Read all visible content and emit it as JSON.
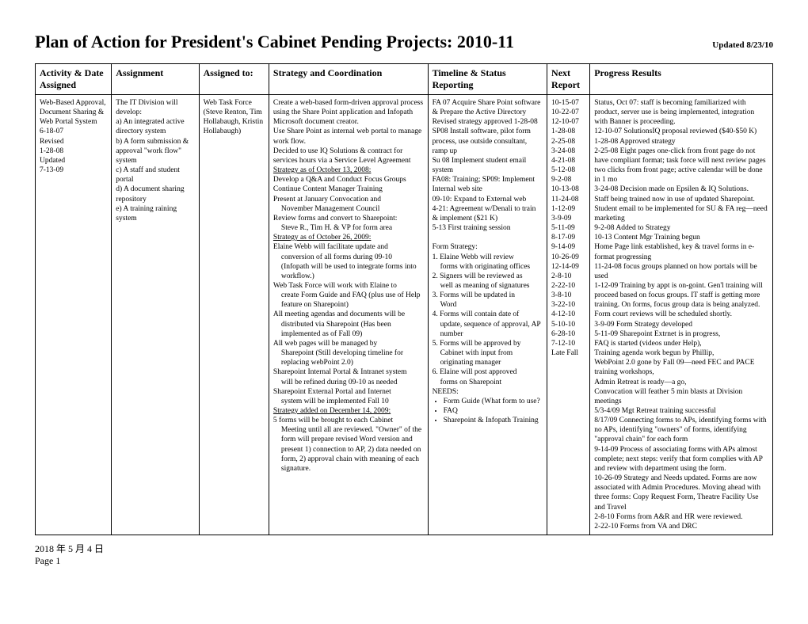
{
  "header": {
    "title": "Plan of Action for President's Cabinet Pending Projects:  2010-11",
    "updated": "Updated 8/23/10"
  },
  "columns": {
    "c1": "Activity & Date Assigned",
    "c2": "Assignment",
    "c3": "Assigned to:",
    "c4": "Strategy and Coordination",
    "c5": "Timeline & Status Reporting",
    "c6": "Next Report",
    "c7": "Progress Results"
  },
  "row": {
    "activity": {
      "l1": "Web-Based Approval, Document Sharing & Web Portal System",
      "l2": "6-18-07",
      "l3": "Revised",
      "l4": "1-28-08",
      "l5": "Updated",
      "l6": "7-13-09"
    },
    "assignment": {
      "l1": "The IT Division will develop:",
      "l2": "a) An integrated active directory system",
      "l3": "b) A form submission & approval \"work flow\" system",
      "l4": "c) A staff and student portal",
      "l5": "d) A document sharing repository",
      "l6": "e) A training raining system"
    },
    "assigned_to": {
      "l1": "Web Task Force (Steve Renton, Tim Hollabaugh, Kristin Hollabaugh)"
    },
    "strategy": {
      "p1": "Create a web-based  form-driven approval process using the Share Point application and Infopath Microsoft document creator.",
      "p2": "Use Share Point as internal web portal to manage work flow.",
      "p3": "Decided to use IQ Solutions & contract for services hours via a Service Level Agreement",
      "u1": "Strategy as of October 13, 2008:",
      "p4": "Develop a Q&A and Conduct Focus Groups",
      "p5": "Continue Content Manager Training",
      "p6": "Present at January Convocation and",
      "p6i": "November Management Council",
      "p7": "Review forms and convert to Sharepoint:",
      "p7i": "Steve R., Tim H. & VP for form area",
      "u2": "Strategy as of October 26, 2009:",
      "p8": "Elaine Webb will facilitate update and",
      "p8i1": "conversion of all forms during 09-10",
      "p8i2": "(Infopath will be used to integrate forms into workflow.)",
      "p9": "Web Task Force will work with Elaine to",
      "p9i": "create Form Guide and FAQ (plus use of Help feature on Sharepoint)",
      "p10": "All meeting agendas and documents will be",
      "p10i": "distributed via Sharepoint (Has been implemented as of Fall 09)",
      "p11": "All web pages will be managed by",
      "p11i": "Sharepoint (Still developing timeline for replacing webPoint 2.0)",
      "p12": "Sharepoint Internal Portal & Intranet system",
      "p12i": "will be refined during 09-10 as needed",
      "p13": "Sharepoint External Portal and Internet",
      "p13i": "system will be implemented Fall 10",
      "u3": "Strategy added on December 14, 2009:",
      "p14": "5 forms will be brought to each Cabinet",
      "p14i": "Meeting until all are reviewed. \"Owner\" of the form will prepare revised Word version and present 1) connection to AP, 2) data needed on form, 2) approval chain with meaning of each signature."
    },
    "timeline": {
      "p1": "FA 07 Acquire Share Point software & Prepare the Active Directory",
      "p2": "Revised strategy approved 1-28-08",
      "p3": "SP08 Install software, pilot form process, use outside consultant, ramp up",
      "p4": "Su 08 Implement student email system",
      "p5": "FA08: Training; SP09: Implement Internal web site",
      "p6": "09-10: Expand to External web",
      "p7": "4-21: Agreement w/Denali to train & implement ($21 K)",
      "p8": "5-13 First training session",
      "fs": "Form Strategy:",
      "fs1": "1. Elaine Webb will review",
      "fs1i": "forms with originating offices",
      "fs2": "2. Signers will be reviewed as",
      "fs2i": "well as meaning of signatures",
      "fs3": "3. Forms will be updated in",
      "fs3i": "Word",
      "fs4": "4. Forms will contain date of",
      "fs4i": "update, sequence of approval, AP number",
      "fs5": "5. Forms will be approved by",
      "fs5i": "Cabinet with input from originating manager",
      "fs6": "6. Elaine will post approved",
      "fs6i": "forms on Sharepoint",
      "needs": "NEEDS:",
      "b1": "Form Guide (What form to use?",
      "b2": "FAQ",
      "b3": "Sharepoint & Infopath Training"
    },
    "next": {
      "d1": "10-15-07",
      "d2": "10-22-07",
      "d3": "12-10-07",
      "d4": "1-28-08",
      "d5": "2-25-08",
      "d6": "3-24-08",
      "d7": "4-21-08",
      "d8": "5-12-08",
      "d9": "9-2-08",
      "d10": "10-13-08",
      "d11": "11-24-08",
      "d12": "1-12-09",
      "d13": "3-9-09",
      "d14": "5-11-09",
      "d15": "8-17-09",
      "d16": "9-14-09",
      "d17": "10-26-09",
      "d18": "12-14-09",
      "d19": "2-8-10",
      "d20": "2-22-10",
      "d21": "3-8-10",
      "d22": "3-22-10",
      "d23": "4-12-10",
      "d24": "5-10-10",
      "d25": "6-28-10",
      "d26": "7-12-10",
      "d27": "Late Fall"
    },
    "progress": {
      "p1": "Status, Oct 07: staff is becoming familiarized with product, server use is being implemented, integration with Banner is proceeding.",
      "p2": "12-10-07 SolutionsIQ proposal reviewed ($40-$50 K)",
      "p3": "1-28-08 Approved strategy",
      "p4": "2-25-08 Eight pages one-click from front page do not have compliant format; task force will next review pages two clicks from front page; active calendar will be done in 1 mo",
      "p5": "3-24-08 Decision made on Epsilen & IQ Solutions.",
      "p6": "Staff being trained now in use of updated Sharepoint.",
      "p7": "Student email to be implemented for SU & FA reg—need marketing",
      "p8": "9-2-08 Added to Strategy",
      "p9": "10-13 Content Mgr Training begun",
      "p10": "Home Page link established, key & travel forms in e-format progressing",
      "p11": "11-24-08 focus groups planned on how portals will be used",
      "p12": "1-12-09 Training by appt is on-goint. Gen'l training will proceed based on focus groups. IT staff is getting more training. On forms, focus group data is being analyzed. Form court reviews will be scheduled shortly.",
      "p13": "3-9-09 Form Strategy developed",
      "p14": "5-11-09 Sharepoint Extrnet is in progress,",
      "p15": "FAQ is started (videos under Help),",
      "p16": "Training agenda work begun by Phillip,",
      "p17": "WebPoint 2.0 gone by Fall 09—need FEC and PACE training workshops,",
      "p18": "Admin Retreat is ready—a go,",
      "p19": "Convocation will feather 5 min blasts at Division meetings",
      "p20": "5/3-4/09 Mgt Retreat training successful",
      "p21": "8/17/09 Connecting forms to APs, identifying forms with no APs, identifying \"owners\" of forms, identifying \"approval chain\" for each form",
      "p22": "9-14-09 Process of associating forms with APs almost complete; next steps: verify that form complies with AP and review with department using the form.",
      "p23": "10-26-09 Strategy and Needs updated. Forms are now associated with Admin Procedures. Moving ahead with three forms: Copy Request Form, Theatre Facility Use and Travel",
      "p24": "2-8-10 Forms from A&R and HR were reviewed.",
      "p25": "2-22-10 Forms from VA and DRC"
    }
  },
  "footer": {
    "date": "2018 年 5 月 4 日",
    "page": "Page  1"
  }
}
